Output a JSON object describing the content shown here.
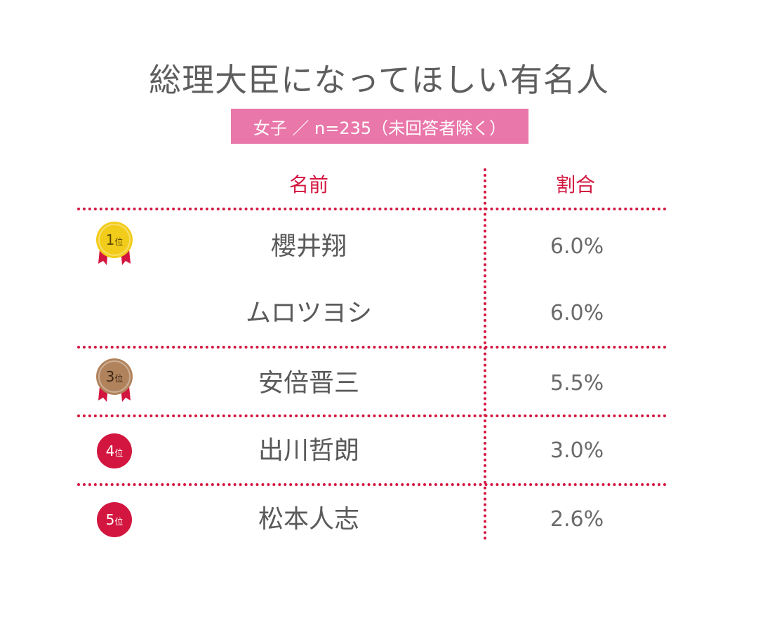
{
  "title": "総理大臣になってほしい有名人",
  "subtitle": "女子 ／ n=235（未回答者除く）",
  "headers": {
    "name": "名前",
    "ratio": "割合"
  },
  "rank_suffix": "位",
  "colors": {
    "accent": "#d3163f",
    "subtitle_bg": "#e977a9",
    "gold": "#f2cc1a",
    "bronze": "#b1835c",
    "ribbon": "#d3163f"
  },
  "chart_data": {
    "type": "table",
    "title": "総理大臣になってほしい有名人",
    "subtitle": "女子 ／ n=235（未回答者除く）",
    "columns": [
      "名前",
      "割合"
    ],
    "rows": [
      {
        "rank": "1",
        "badge": "gold-medal",
        "name": "櫻井翔",
        "ratio": "6.0%",
        "value": 6.0
      },
      {
        "rank": "",
        "badge": "",
        "name": "ムロツヨシ",
        "ratio": "6.0%",
        "value": 6.0
      },
      {
        "rank": "3",
        "badge": "bronze-medal",
        "name": "安倍晋三",
        "ratio": "5.5%",
        "value": 5.5
      },
      {
        "rank": "4",
        "badge": "red-circle",
        "name": "出川哲朗",
        "ratio": "3.0%",
        "value": 3.0
      },
      {
        "rank": "5",
        "badge": "red-circle",
        "name": "松本人志",
        "ratio": "2.6%",
        "value": 2.6
      }
    ]
  }
}
